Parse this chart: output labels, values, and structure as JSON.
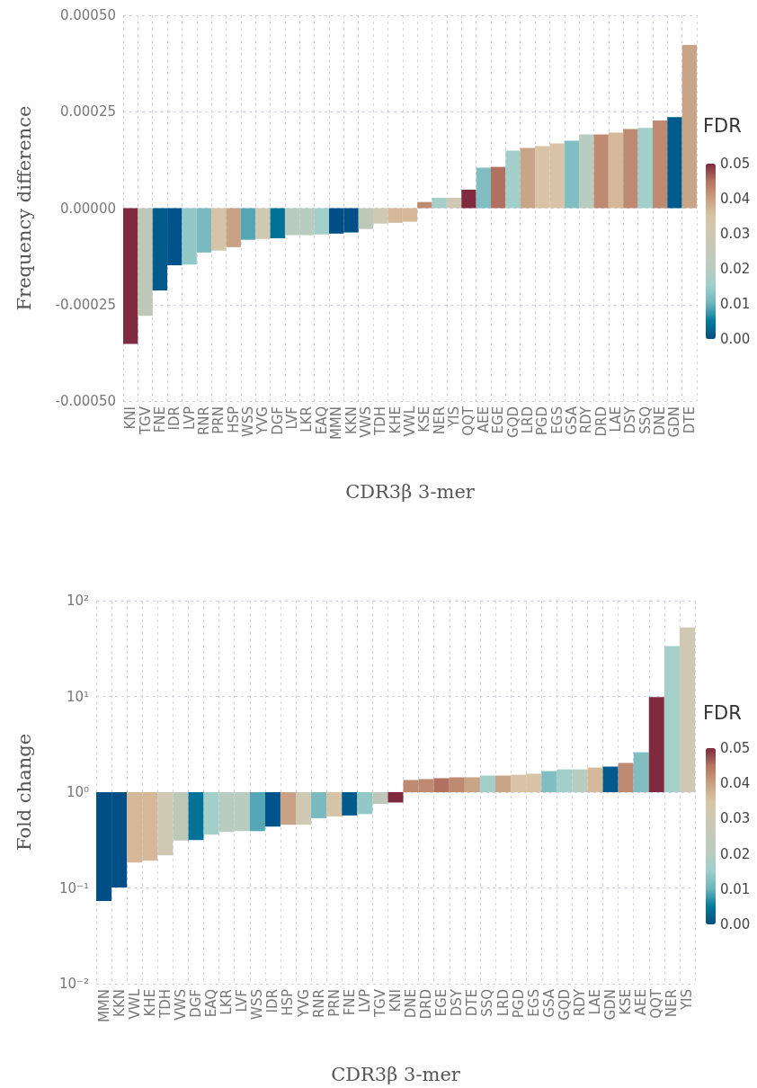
{
  "chart_data": [
    {
      "type": "bar",
      "xlabel": "CDR3β 3-mer",
      "ylabel": "Frequency difference",
      "clabel": "FDR",
      "clim": [
        0,
        0.05
      ],
      "cticks": [
        {
          "value": 0,
          "label": "0.00"
        },
        {
          "value": 0.01,
          "label": "0.01"
        },
        {
          "value": 0.02,
          "label": "0.02"
        },
        {
          "value": 0.03,
          "label": "0.03"
        },
        {
          "value": 0.04,
          "label": "0.04"
        },
        {
          "value": 0.05,
          "label": "0.05"
        }
      ],
      "categories": [
        "KNI",
        "TGV",
        "FNE",
        "IDR",
        "LVP",
        "RNR",
        "PRN",
        "HSP",
        "WSS",
        "YVG",
        "DGF",
        "LVF",
        "LKR",
        "EAQ",
        "MMN",
        "KKN",
        "VWS",
        "TDH",
        "KHE",
        "VWL",
        "KSE",
        "NER",
        "YIS",
        "QQT",
        "AEE",
        "EGE",
        "GQD",
        "LRD",
        "PGD",
        "EGS",
        "GSA",
        "RDY",
        "DRD",
        "LAE",
        "DSY",
        "SSQ",
        "DNE",
        "GDN",
        "DTE"
      ],
      "values": [
        -0.000352,
        -0.000279,
        -0.000213,
        -0.000148,
        -0.000146,
        -0.000115,
        -0.00011,
        -0.000101,
        -8.2e-05,
        -8e-05,
        -7.8e-05,
        -7e-05,
        -7e-05,
        -6.8e-05,
        -6.6e-05,
        -6.3e-05,
        -5.4e-05,
        -4e-05,
        -3.8e-05,
        -3.5e-05,
        1.6e-05,
        2.7e-05,
        2.7e-05,
        4.8e-05,
        0.000105,
        0.000107,
        0.000149,
        0.000156,
        0.000161,
        0.000168,
        0.000175,
        0.000191,
        0.000191,
        0.000196,
        0.000205,
        0.000208,
        0.000227,
        0.000236,
        0.000423
      ],
      "colors": [
        "#7f2a3f",
        "#bec8b8",
        "#005a8c",
        "#00528a",
        "#92c8c6",
        "#7ab9bf",
        "#d5c4a8",
        "#c9a185",
        "#56a7b6",
        "#cfc8b2",
        "#007197",
        "#b8ccc0",
        "#b8ccc0",
        "#a2cfca",
        "#004f86",
        "#004f86",
        "#bec8b8",
        "#cfc8b2",
        "#d5b89a",
        "#d5b89a",
        "#bf8a72",
        "#a5d0ca",
        "#cfc8b2",
        "#7f2a3f",
        "#82bec1",
        "#b07160",
        "#a2cfca",
        "#c9a587",
        "#d9c3a7",
        "#d9c3a7",
        "#82bec1",
        "#b8ccc0",
        "#bf8a72",
        "#d5b89a",
        "#bf8a72",
        "#a2cfca",
        "#bf8a72",
        "#005a8c",
        "#c9a587"
      ],
      "ylim": [
        -0.0005,
        0.0005
      ],
      "yticks": [
        {
          "value": -0.0005,
          "label": "-0.00050"
        },
        {
          "value": -0.00025,
          "label": "-0.00025"
        },
        {
          "value": 0,
          "label": "0.00000"
        },
        {
          "value": 0.00025,
          "label": "0.00025"
        },
        {
          "value": 0.0005,
          "label": "0.00050"
        }
      ],
      "grid": true
    },
    {
      "type": "bar",
      "xlabel": "CDR3β 3-mer",
      "ylabel": "Fold change",
      "clabel": "FDR",
      "clim": [
        0,
        0.05
      ],
      "cticks": [
        {
          "value": 0,
          "label": "0.00"
        },
        {
          "value": 0.01,
          "label": "0.01"
        },
        {
          "value": 0.02,
          "label": "0.02"
        },
        {
          "value": 0.03,
          "label": "0.03"
        },
        {
          "value": 0.04,
          "label": "0.04"
        },
        {
          "value": 0.05,
          "label": "0.05"
        }
      ],
      "categories": [
        "MMN",
        "KKN",
        "VWL",
        "KHE",
        "TDH",
        "VWS",
        "DGF",
        "EAQ",
        "LKR",
        "LVF",
        "WSS",
        "IDR",
        "HSP",
        "YVG",
        "RNR",
        "PRN",
        "FNE",
        "LVP",
        "TGV",
        "KNI",
        "DNE",
        "DRD",
        "EGE",
        "DSY",
        "DTE",
        "SSQ",
        "LRD",
        "PGD",
        "EGS",
        "GSA",
        "GQD",
        "RDY",
        "LAE",
        "GDN",
        "KSE",
        "AEE",
        "QQT",
        "NER",
        "YIS"
      ],
      "base": [
        1,
        1,
        1,
        1,
        1,
        1,
        1,
        1,
        1,
        1,
        1,
        1,
        1,
        1,
        1,
        1,
        1,
        1,
        1,
        1,
        1,
        1,
        1,
        1,
        1,
        1,
        1,
        1,
        1,
        1,
        1,
        1,
        1,
        1,
        1,
        1,
        1,
        1,
        1
      ],
      "values": [
        -0.927,
        -0.899,
        -0.816,
        -0.808,
        -0.781,
        -0.688,
        -0.684,
        -0.64,
        -0.616,
        -0.608,
        -0.608,
        -0.563,
        -0.543,
        -0.543,
        -0.465,
        -0.442,
        -0.429,
        -0.409,
        -0.245,
        -0.22,
        0.34,
        0.37,
        0.4,
        0.43,
        0.43,
        0.49,
        0.49,
        0.52,
        0.56,
        0.66,
        0.73,
        0.73,
        0.81,
        0.85,
        1.02,
        1.61,
        8.86,
        32.5,
        51.6
      ],
      "colors": [
        "#004f86",
        "#004f86",
        "#d5b89a",
        "#d5b89a",
        "#cfc8b2",
        "#bec8b8",
        "#007197",
        "#a2cfca",
        "#b8ccc0",
        "#b8ccc0",
        "#56a7b6",
        "#00528a",
        "#c9a185",
        "#cfc8b2",
        "#7ab9bf",
        "#d5c4a8",
        "#005a8c",
        "#92c8c6",
        "#bec8b8",
        "#7f2a3f",
        "#bf8a72",
        "#bf8a72",
        "#b07160",
        "#bf8a72",
        "#c9a587",
        "#a2cfca",
        "#c9a587",
        "#d9c3a7",
        "#d9c3a7",
        "#82bec1",
        "#a2cfca",
        "#b8ccc0",
        "#d5b89a",
        "#005a8c",
        "#bf8a72",
        "#82bec1",
        "#7f2a3f",
        "#a5d0ca",
        "#cfc8b2"
      ],
      "log": "y",
      "ylim": [
        0.01,
        100
      ],
      "yticks": [
        {
          "value": 0.01,
          "label": "10⁻²"
        },
        {
          "value": 0.1,
          "label": "10⁻¹"
        },
        {
          "value": 1,
          "label": "10⁰"
        },
        {
          "value": 10,
          "label": "10¹"
        },
        {
          "value": 100,
          "label": "10²"
        }
      ],
      "grid": true
    }
  ]
}
